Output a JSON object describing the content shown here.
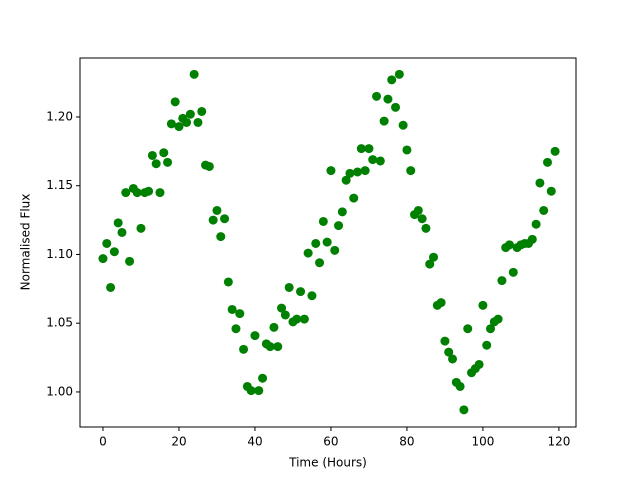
{
  "chart_data": {
    "type": "scatter",
    "xlabel": "Time (Hours)",
    "ylabel": "Normalised Flux",
    "color": "#008000",
    "x": [
      0,
      1,
      2,
      3,
      4,
      5,
      6,
      7,
      8,
      9,
      10,
      11,
      12,
      13,
      14,
      15,
      16,
      17,
      18,
      19,
      20,
      21,
      22,
      23,
      24,
      25,
      26,
      27,
      28,
      29,
      30,
      31,
      32,
      33,
      34,
      35,
      36,
      37,
      38,
      39,
      40,
      41,
      42,
      43,
      44,
      45,
      46,
      47,
      48,
      49,
      50,
      51,
      52,
      53,
      54,
      55,
      56,
      57,
      58,
      59,
      60,
      61,
      62,
      63,
      64,
      65,
      66,
      67,
      68,
      69,
      70,
      71,
      72,
      73,
      74,
      75,
      76,
      77,
      78,
      79,
      80,
      81,
      82,
      83,
      84,
      85,
      86,
      87,
      88,
      89,
      90,
      91,
      92,
      93,
      94,
      95,
      96,
      97,
      98,
      99,
      100,
      101,
      102,
      103,
      104,
      105,
      106,
      107,
      108,
      109,
      110,
      111,
      112,
      113,
      114,
      115,
      116,
      117,
      118,
      119
    ],
    "values": [
      1.097,
      1.108,
      1.076,
      1.102,
      1.123,
      1.116,
      1.145,
      1.095,
      1.148,
      1.145,
      1.119,
      1.145,
      1.146,
      1.172,
      1.166,
      1.145,
      1.174,
      1.167,
      1.195,
      1.211,
      1.193,
      1.199,
      1.196,
      1.202,
      1.231,
      1.196,
      1.204,
      1.165,
      1.164,
      1.125,
      1.132,
      1.113,
      1.126,
      1.08,
      1.06,
      1.046,
      1.057,
      1.031,
      1.004,
      1.001,
      1.041,
      1.001,
      1.01,
      1.035,
      1.033,
      1.047,
      1.033,
      1.061,
      1.056,
      1.076,
      1.051,
      1.053,
      1.073,
      1.053,
      1.101,
      1.07,
      1.108,
      1.094,
      1.124,
      1.109,
      1.161,
      1.103,
      1.121,
      1.131,
      1.154,
      1.159,
      1.141,
      1.16,
      1.177,
      1.161,
      1.177,
      1.169,
      1.215,
      1.168,
      1.197,
      1.213,
      1.227,
      1.207,
      1.231,
      1.194,
      1.176,
      1.161,
      1.129,
      1.132,
      1.126,
      1.119,
      1.093,
      1.098,
      1.063,
      1.065,
      1.037,
      1.029,
      1.024,
      1.007,
      1.004,
      0.987,
      1.046,
      1.014,
      1.017,
      1.02,
      1.063,
      1.034,
      1.046,
      1.051,
      1.053,
      1.081,
      1.105,
      1.107,
      1.087,
      1.105,
      1.107,
      1.108,
      1.108,
      1.111,
      1.122,
      1.152,
      1.132,
      1.167,
      1.146,
      1.175
    ],
    "xlim": [
      -6.05,
      124.5
    ],
    "xticks": [
      0,
      20,
      40,
      60,
      80,
      100,
      120
    ],
    "ylim": [
      0.9745,
      1.2429
    ],
    "yticks": [
      {
        "value": 1.0,
        "label": "1.00"
      },
      {
        "value": 1.05,
        "label": "1.05"
      },
      {
        "value": 1.1,
        "label": "1.10"
      },
      {
        "value": 1.15,
        "label": "1.15"
      },
      {
        "value": 1.2,
        "label": "1.20"
      }
    ]
  }
}
